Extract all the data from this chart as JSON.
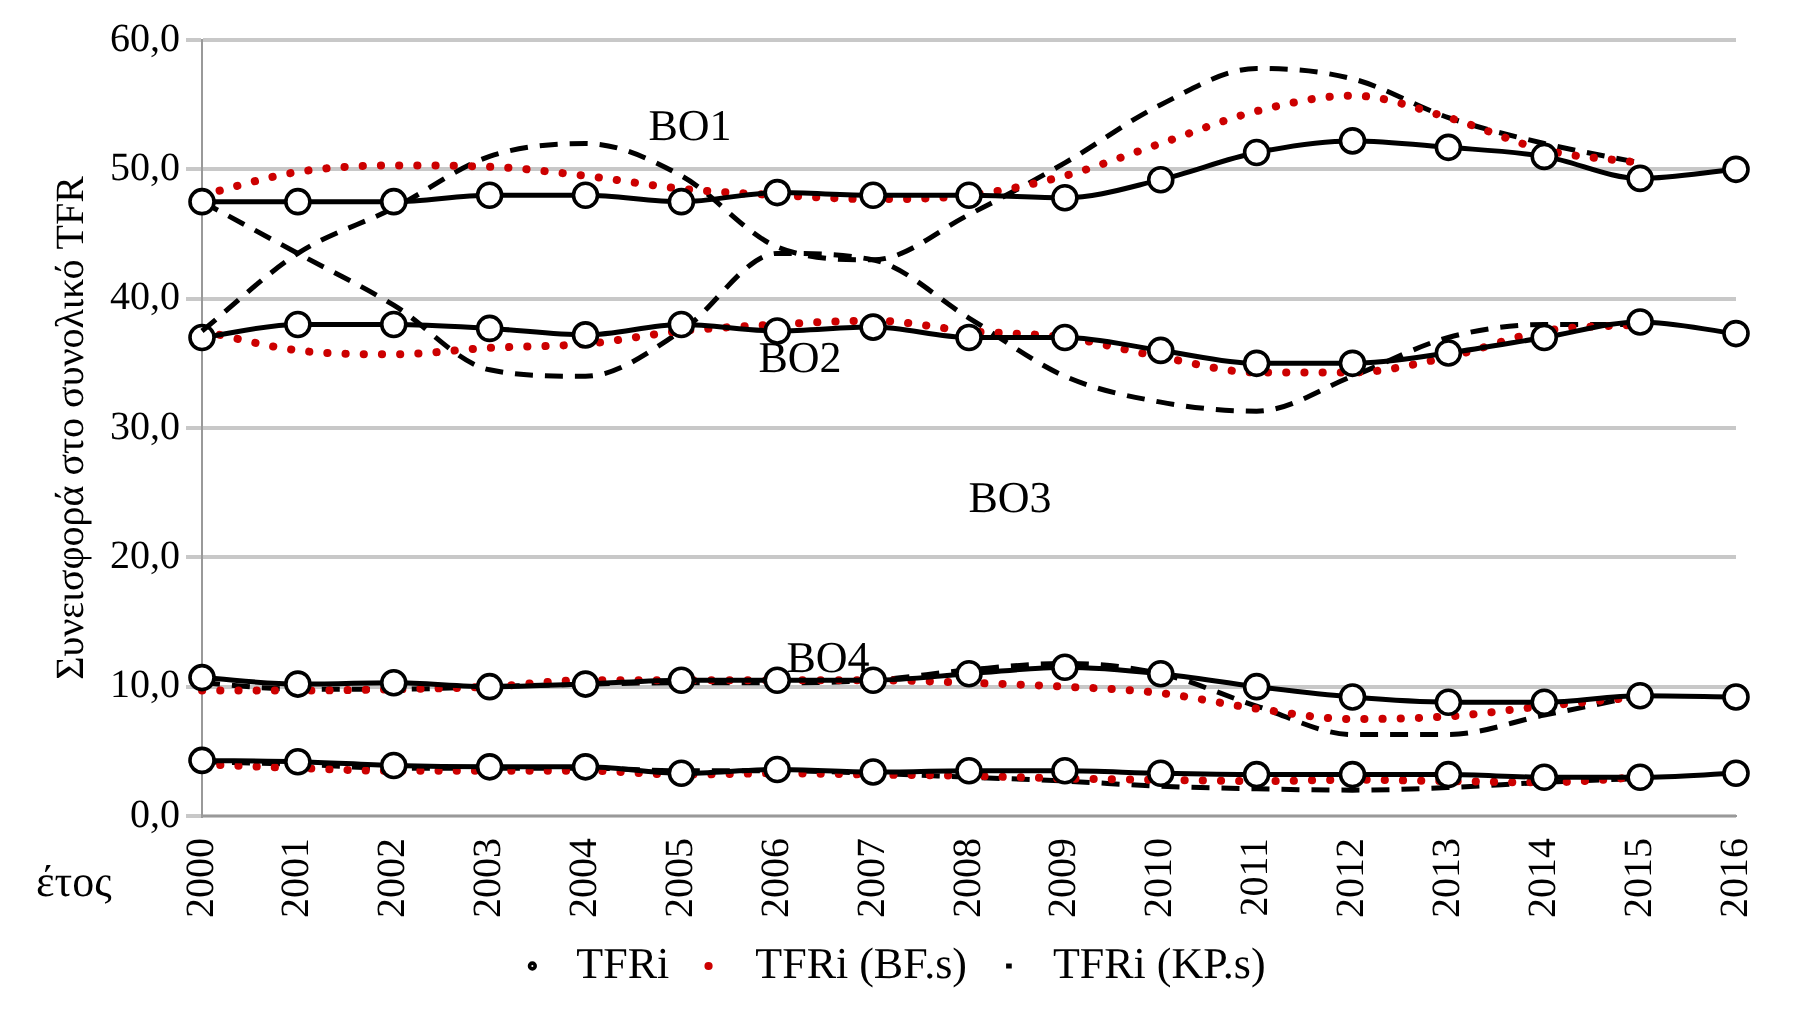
{
  "chart_data": {
    "type": "line",
    "ylabel": "Συνεισφορά στο συνολικό TFR",
    "xlabel": "έτος",
    "categories": [
      "2000",
      "2001",
      "2002",
      "2003",
      "2004",
      "2005",
      "2006",
      "2007",
      "2008",
      "2009",
      "2010",
      "2011",
      "2012",
      "2013",
      "2014",
      "2015",
      "2016"
    ],
    "ylim": [
      0,
      60
    ],
    "yticks": [
      {
        "value": 0,
        "label": "0,0"
      },
      {
        "value": 10,
        "label": "10,0"
      },
      {
        "value": 20,
        "label": "20,0"
      },
      {
        "value": 30,
        "label": "30,0"
      },
      {
        "value": 40,
        "label": "40,0"
      },
      {
        "value": 50,
        "label": "50,0"
      },
      {
        "value": 60,
        "label": "60,0"
      }
    ],
    "grid": "y",
    "legend": "bottom",
    "annotations": [
      "BO1",
      "BO2",
      "BO3",
      "BO4"
    ],
    "series": [
      {
        "name": "TFRi",
        "color": "#000000",
        "line_style": "solid",
        "marker": "circle",
        "values": [
          47.5,
          47.5,
          47.5,
          48,
          48,
          47.5,
          48.2,
          48,
          48,
          47.8,
          49.2,
          51.3,
          52.2,
          51.7,
          51,
          49.3,
          50
        ]
      },
      {
        "name": "TFRi (BF.s)",
        "color": "#cc0000",
        "line_style": "dotted",
        "marker": "none",
        "values": [
          48,
          49.8,
          50.3,
          50.2,
          49.5,
          48.5,
          48,
          47.7,
          48,
          49.5,
          52,
          54.5,
          55.7,
          54,
          51.5,
          50.5,
          null
        ]
      },
      {
        "name": "TFRi (KP.s)",
        "color": "#000000",
        "line_style": "dashed",
        "marker": "none",
        "values": [
          37.5,
          43.5,
          47,
          51,
          52,
          49.5,
          44,
          43,
          46.5,
          50.5,
          55,
          57.8,
          57,
          54,
          52,
          50.5,
          null
        ]
      },
      {
        "color": "#000000",
        "line_style": "solid",
        "marker": "circle",
        "values": [
          37,
          38,
          38,
          37.7,
          37.2,
          38,
          37.5,
          37.8,
          37,
          37,
          36,
          35,
          35,
          35.8,
          37,
          38.2,
          37.3
        ]
      },
      {
        "color": "#cc0000",
        "line_style": "dotted",
        "marker": "none",
        "values": [
          37.5,
          36,
          35.7,
          36.2,
          36.5,
          37.5,
          38,
          38.3,
          37.5,
          37,
          35.5,
          34.3,
          34.3,
          35.5,
          37.5,
          38,
          null
        ]
      },
      {
        "color": "#000000",
        "line_style": "dashed",
        "marker": "none",
        "values": [
          47.5,
          43.5,
          39.5,
          34.5,
          34,
          37.5,
          43.5,
          43,
          38.5,
          34,
          32,
          31.3,
          34,
          37,
          38,
          38,
          null
        ]
      },
      {
        "color": "#000000",
        "line_style": "solid",
        "marker": "circle",
        "values": [
          10.7,
          10.2,
          10.3,
          10,
          10.2,
          10.5,
          10.5,
          10.5,
          11,
          11.5,
          11,
          10,
          9.2,
          8.8,
          8.8,
          9.3,
          9.2
        ]
      },
      {
        "color": "#cc0000",
        "line_style": "dotted",
        "marker": "none",
        "values": [
          9.7,
          9.7,
          9.8,
          10,
          10.5,
          10.5,
          10.5,
          10.5,
          10.3,
          10,
          9.5,
          8.3,
          7.5,
          7.7,
          8.5,
          9.2,
          null
        ]
      },
      {
        "color": "#000000",
        "line_style": "dashed",
        "marker": "none",
        "values": [
          10.3,
          9.8,
          9.8,
          10,
          10.2,
          10.3,
          10.3,
          10.5,
          11.3,
          11.8,
          11,
          8.5,
          6.3,
          6.3,
          7.8,
          9.3,
          null
        ]
      },
      {
        "color": "#000000",
        "line_style": "solid",
        "marker": "circle",
        "values": [
          4.3,
          4.2,
          3.9,
          3.8,
          3.8,
          3.3,
          3.6,
          3.4,
          3.5,
          3.5,
          3.3,
          3.2,
          3.2,
          3.2,
          3,
          3,
          3.3
        ]
      },
      {
        "color": "#cc0000",
        "line_style": "dotted",
        "marker": "none",
        "values": [
          4,
          3.7,
          3.5,
          3.5,
          3.5,
          3.2,
          3.3,
          3.2,
          3.1,
          2.9,
          2.8,
          2.7,
          2.8,
          2.7,
          2.6,
          3,
          null
        ]
      },
      {
        "color": "#000000",
        "line_style": "dashed",
        "marker": "none",
        "values": [
          4.2,
          4,
          3.7,
          3.7,
          3.7,
          3.5,
          3.5,
          3.3,
          3,
          2.7,
          2.3,
          2.1,
          2,
          2.2,
          2.6,
          2.9,
          null
        ]
      }
    ]
  }
}
